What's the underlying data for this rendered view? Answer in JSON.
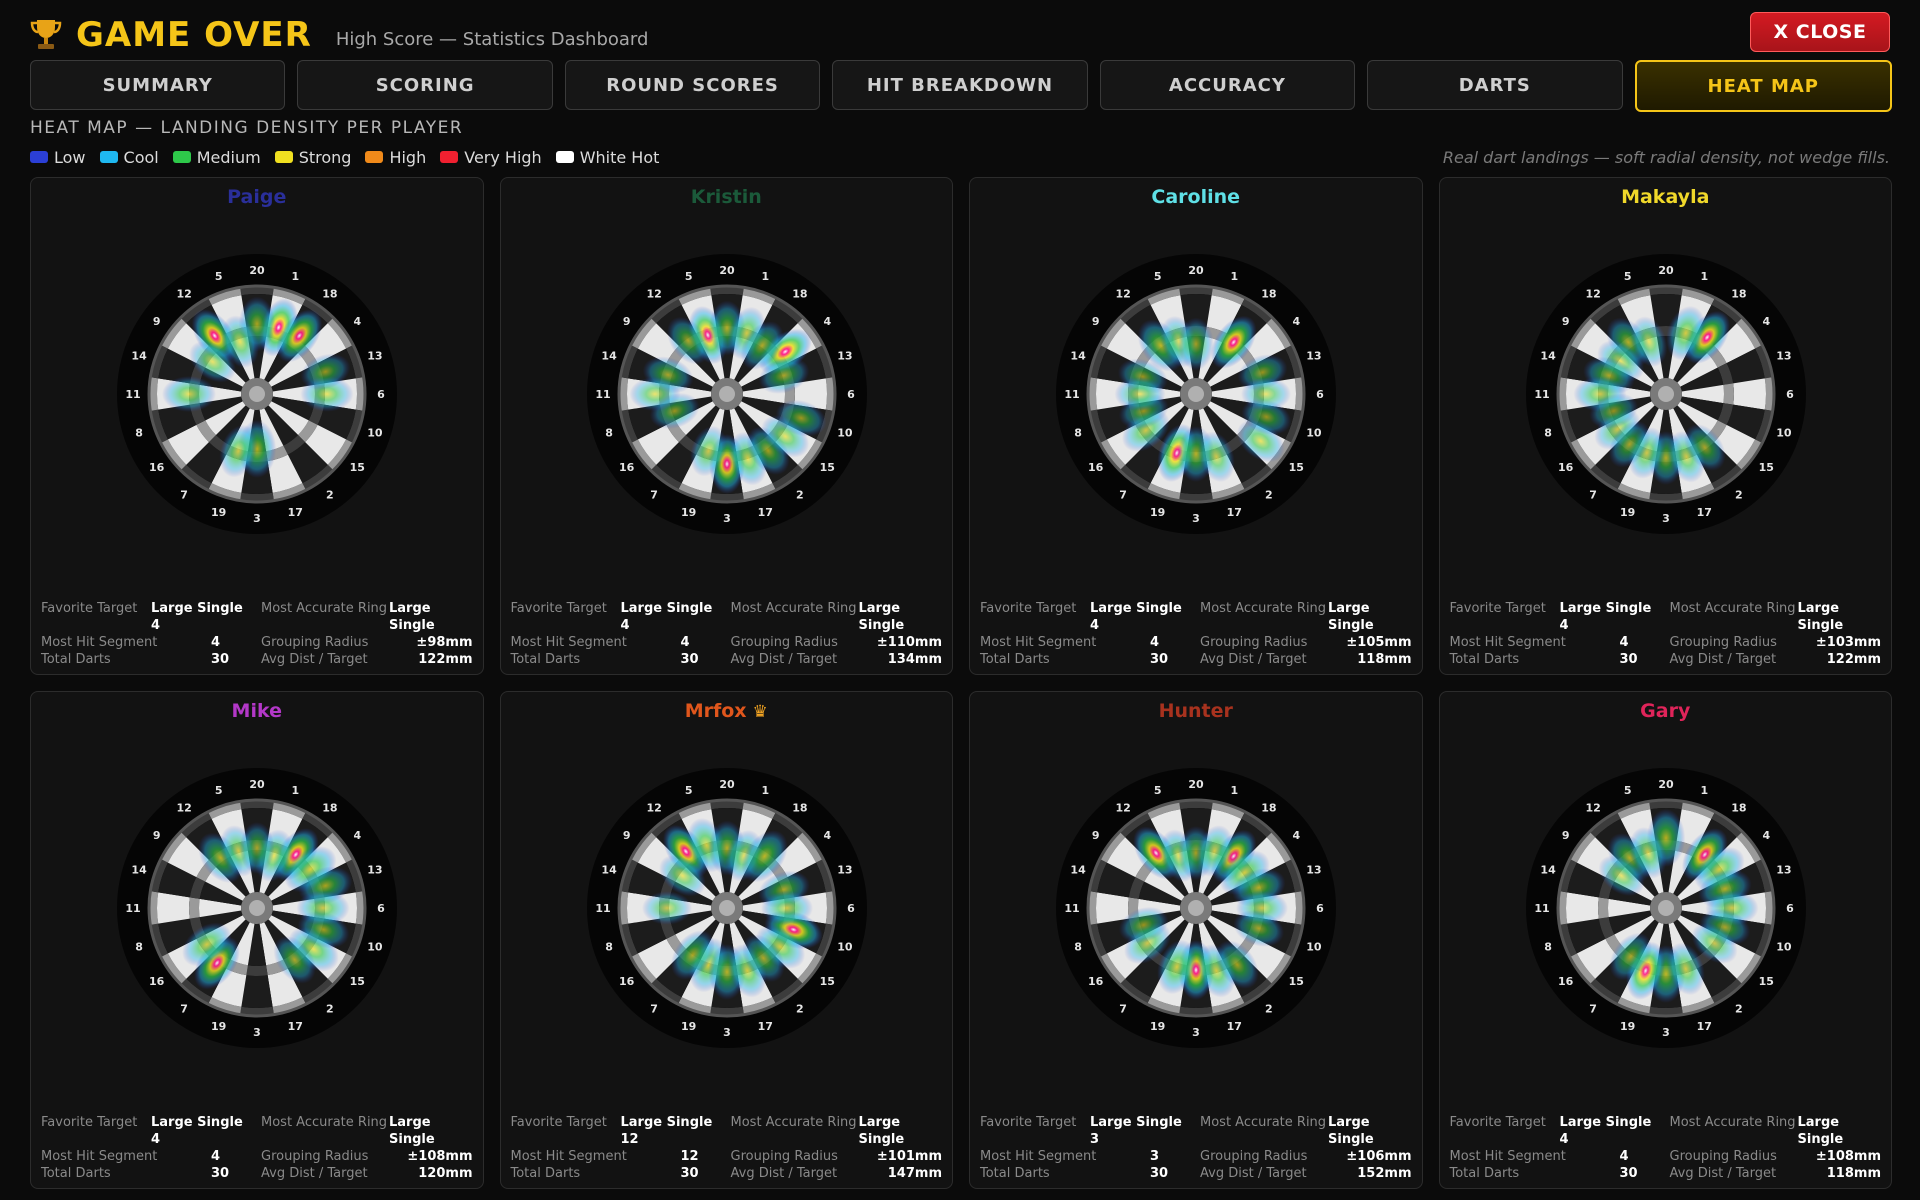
{
  "header": {
    "title": "GAME OVER",
    "subtitle": "High Score — Statistics Dashboard",
    "close_label": "X CLOSE"
  },
  "tabs": [
    {
      "label": "SUMMARY",
      "active": false
    },
    {
      "label": "SCORING",
      "active": false
    },
    {
      "label": "ROUND SCORES",
      "active": false
    },
    {
      "label": "HIT BREAKDOWN",
      "active": false
    },
    {
      "label": "ACCURACY",
      "active": false
    },
    {
      "label": "DARTS",
      "active": false
    },
    {
      "label": "HEAT MAP",
      "active": true
    }
  ],
  "section_title": "HEAT MAP — LANDING DENSITY PER PLAYER",
  "legend": [
    {
      "label": "Low",
      "color": "#2b3fd6"
    },
    {
      "label": "Cool",
      "color": "#1fb8f0"
    },
    {
      "label": "Medium",
      "color": "#2ec94a"
    },
    {
      "label": "Strong",
      "color": "#f0e020"
    },
    {
      "label": "High",
      "color": "#f08a1a"
    },
    {
      "label": "Very High",
      "color": "#f02030"
    },
    {
      "label": "White Hot",
      "color": "#ffffff"
    }
  ],
  "note": "Real dart landings — soft radial density, not wedge fills.",
  "board_numbers": [
    "20",
    "1",
    "18",
    "4",
    "13",
    "6",
    "10",
    "15",
    "2",
    "17",
    "3",
    "19",
    "7",
    "16",
    "8",
    "11",
    "14",
    "9",
    "12",
    "5"
  ],
  "stat_labels": {
    "favorite_target": "Favorite Target",
    "most_accurate_ring": "Most Accurate Ring",
    "most_hit_segment": "Most Hit Segment",
    "grouping_radius": "Grouping Radius",
    "total_darts": "Total Darts",
    "avg_dist": "Avg Dist / Target"
  },
  "players": [
    {
      "name": "Paige",
      "color": "#2a2f9a",
      "winner": false,
      "favorite": "Large Single",
      "target": "4",
      "accurate_ring": "Large Single",
      "most_hit": "4",
      "grouping": "±98mm",
      "total_darts": "30",
      "avg_dist": "122mm",
      "hotspots": [
        [
          12,
          0.72,
          0.95
        ],
        [
          1,
          0.7,
          0.9
        ],
        [
          18,
          0.72,
          0.85
        ],
        [
          20,
          0.7,
          0.55
        ],
        [
          5,
          0.55,
          0.5
        ],
        [
          11,
          0.68,
          0.5
        ],
        [
          9,
          0.55,
          0.4
        ],
        [
          6,
          0.7,
          0.45
        ],
        [
          3,
          0.55,
          0.7
        ],
        [
          19,
          0.6,
          0.5
        ],
        [
          13,
          0.72,
          0.35
        ]
      ]
    },
    {
      "name": "Kristin",
      "color": "#1b5a3a",
      "winner": false,
      "favorite": "Large Single",
      "target": "4",
      "accurate_ring": "Large Single",
      "most_hit": "4",
      "grouping": "±110mm",
      "total_darts": "30",
      "avg_dist": "134mm",
      "hotspots": [
        [
          4,
          0.72,
          0.95
        ],
        [
          5,
          0.62,
          0.8
        ],
        [
          20,
          0.66,
          0.55
        ],
        [
          1,
          0.64,
          0.5
        ],
        [
          12,
          0.66,
          0.45
        ],
        [
          18,
          0.6,
          0.5
        ],
        [
          3,
          0.7,
          0.85
        ],
        [
          17,
          0.68,
          0.55
        ],
        [
          2,
          0.7,
          0.5
        ],
        [
          15,
          0.72,
          0.45
        ],
        [
          10,
          0.78,
          0.4
        ],
        [
          14,
          0.62,
          0.4
        ],
        [
          8,
          0.55,
          0.35
        ],
        [
          11,
          0.72,
          0.35
        ],
        [
          13,
          0.6,
          0.4
        ],
        [
          19,
          0.6,
          0.4
        ]
      ]
    },
    {
      "name": "Caroline",
      "color": "#5fe0e6",
      "winner": false,
      "favorite": "Large Single",
      "target": "4",
      "accurate_ring": "Large Single",
      "most_hit": "4",
      "grouping": "±105mm",
      "total_darts": "30",
      "avg_dist": "118mm",
      "hotspots": [
        [
          18,
          0.64,
          0.95
        ],
        [
          12,
          0.6,
          0.7
        ],
        [
          5,
          0.55,
          0.45
        ],
        [
          20,
          0.5,
          0.45
        ],
        [
          19,
          0.62,
          0.85
        ],
        [
          3,
          0.6,
          0.6
        ],
        [
          17,
          0.66,
          0.4
        ],
        [
          16,
          0.62,
          0.45
        ],
        [
          8,
          0.55,
          0.35
        ],
        [
          14,
          0.56,
          0.35
        ],
        [
          11,
          0.56,
          0.35
        ],
        [
          15,
          0.8,
          0.45
        ],
        [
          10,
          0.74,
          0.35
        ],
        [
          13,
          0.7,
          0.35
        ],
        [
          6,
          0.7,
          0.3
        ]
      ]
    },
    {
      "name": "Makayla",
      "color": "#f0d82a",
      "winner": false,
      "favorite": "Large Single",
      "target": "4",
      "accurate_ring": "Large Single",
      "most_hit": "4",
      "grouping": "±103mm",
      "total_darts": "30",
      "avg_dist": "122mm",
      "hotspots": [
        [
          18,
          0.7,
          0.95
        ],
        [
          1,
          0.64,
          0.6
        ],
        [
          12,
          0.64,
          0.55
        ],
        [
          5,
          0.55,
          0.4
        ],
        [
          9,
          0.56,
          0.4
        ],
        [
          14,
          0.6,
          0.45
        ],
        [
          11,
          0.66,
          0.45
        ],
        [
          3,
          0.64,
          0.5
        ],
        [
          17,
          0.66,
          0.45
        ],
        [
          19,
          0.62,
          0.45
        ],
        [
          2,
          0.66,
          0.4
        ],
        [
          16,
          0.6,
          0.35
        ],
        [
          7,
          0.62,
          0.4
        ],
        [
          8,
          0.55,
          0.3
        ]
      ]
    },
    {
      "name": "Mike",
      "color": "#b338c8",
      "winner": false,
      "favorite": "Large Single",
      "target": "4",
      "accurate_ring": "Large Single",
      "most_hit": "4",
      "grouping": "±108mm",
      "total_darts": "30",
      "avg_dist": "120mm",
      "hotspots": [
        [
          18,
          0.66,
          0.95
        ],
        [
          4,
          0.66,
          0.7
        ],
        [
          13,
          0.72,
          0.55
        ],
        [
          12,
          0.62,
          0.6
        ],
        [
          5,
          0.6,
          0.45
        ],
        [
          1,
          0.55,
          0.5
        ],
        [
          7,
          0.68,
          0.85
        ],
        [
          16,
          0.62,
          0.55
        ],
        [
          15,
          0.7,
          0.6
        ],
        [
          10,
          0.7,
          0.45
        ],
        [
          2,
          0.64,
          0.45
        ],
        [
          6,
          0.66,
          0.45
        ],
        [
          20,
          0.6,
          0.4
        ]
      ]
    },
    {
      "name": "Mrfox",
      "color": "#e0561c",
      "winner": true,
      "favorite": "Large Single",
      "target": "12",
      "accurate_ring": "Large Single",
      "most_hit": "12",
      "grouping": "±101mm",
      "total_darts": "30",
      "avg_dist": "147mm",
      "hotspots": [
        [
          12,
          0.7,
          0.95
        ],
        [
          5,
          0.66,
          0.6
        ],
        [
          20,
          0.6,
          0.55
        ],
        [
          1,
          0.55,
          0.45
        ],
        [
          18,
          0.64,
          0.7
        ],
        [
          10,
          0.7,
          0.9
        ],
        [
          15,
          0.66,
          0.55
        ],
        [
          19,
          0.6,
          0.6
        ],
        [
          7,
          0.58,
          0.55
        ],
        [
          3,
          0.64,
          0.6
        ],
        [
          17,
          0.66,
          0.55
        ],
        [
          2,
          0.62,
          0.45
        ],
        [
          9,
          0.55,
          0.4
        ],
        [
          13,
          0.6,
          0.45
        ],
        [
          6,
          0.6,
          0.4
        ],
        [
          11,
          0.6,
          0.3
        ]
      ]
    },
    {
      "name": "Hunter",
      "color": "#a8321e",
      "winner": false,
      "favorite": "Large Single",
      "target": "3",
      "accurate_ring": "Large Single",
      "most_hit": "3",
      "grouping": "±106mm",
      "total_darts": "30",
      "avg_dist": "152mm",
      "hotspots": [
        [
          12,
          0.68,
          0.9
        ],
        [
          18,
          0.64,
          0.85
        ],
        [
          4,
          0.6,
          0.6
        ],
        [
          13,
          0.66,
          0.55
        ],
        [
          5,
          0.55,
          0.5
        ],
        [
          20,
          0.55,
          0.5
        ],
        [
          1,
          0.6,
          0.45
        ],
        [
          3,
          0.62,
          0.95
        ],
        [
          17,
          0.66,
          0.55
        ],
        [
          19,
          0.62,
          0.6
        ],
        [
          2,
          0.7,
          0.5
        ],
        [
          16,
          0.6,
          0.4
        ],
        [
          8,
          0.55,
          0.35
        ],
        [
          6,
          0.66,
          0.4
        ],
        [
          10,
          0.66,
          0.4
        ]
      ]
    },
    {
      "name": "Gary",
      "color": "#e0245a",
      "winner": false,
      "favorite": "Large Single",
      "target": "4",
      "accurate_ring": "Large Single",
      "most_hit": "4",
      "grouping": "±108mm",
      "total_darts": "30",
      "avg_dist": "118mm",
      "hotspots": [
        [
          20,
          0.7,
          0.7
        ],
        [
          18,
          0.66,
          0.85
        ],
        [
          4,
          0.66,
          0.6
        ],
        [
          12,
          0.62,
          0.55
        ],
        [
          5,
          0.58,
          0.45
        ],
        [
          13,
          0.62,
          0.55
        ],
        [
          6,
          0.66,
          0.45
        ],
        [
          3,
          0.66,
          0.7
        ],
        [
          19,
          0.66,
          0.8
        ],
        [
          17,
          0.64,
          0.5
        ],
        [
          7,
          0.6,
          0.45
        ],
        [
          10,
          0.62,
          0.4
        ],
        [
          15,
          0.6,
          0.35
        ],
        [
          9,
          0.55,
          0.35
        ]
      ]
    }
  ]
}
